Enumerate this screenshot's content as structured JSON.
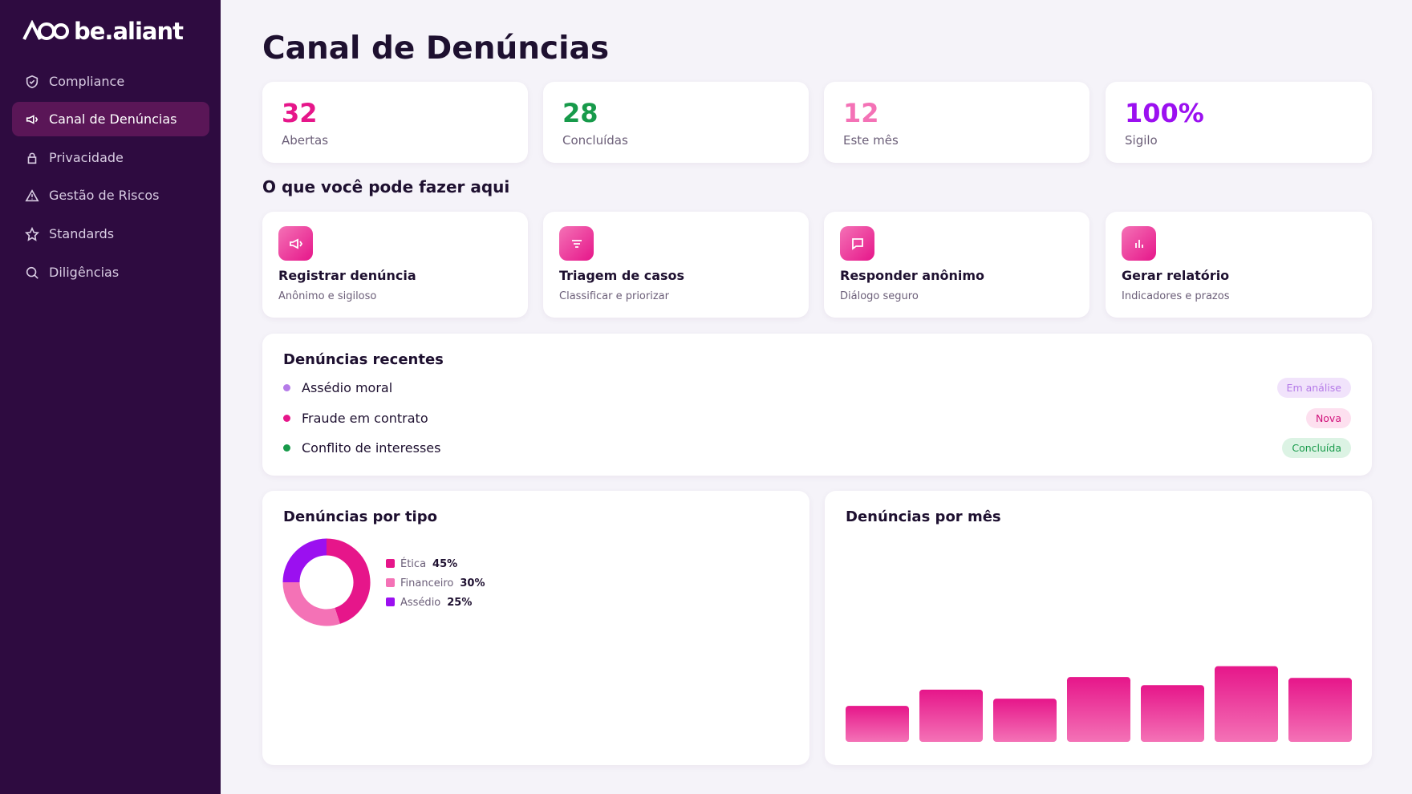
{
  "sidebar": {
    "logo": "be.aliant",
    "nav": [
      "Compliance",
      "Canal de Denúncias",
      "Privacidade",
      "Gestão de Riscos",
      "Standards",
      "Diligências"
    ]
  },
  "header": {
    "title": "Canal de Denúncias"
  },
  "stats": [
    {
      "value": "32",
      "label": "Abertas"
    },
    {
      "value": "28",
      "label": "Concluídas"
    },
    {
      "value": "12",
      "label": "Este mês"
    },
    {
      "value": "100%",
      "label": "Sigilo"
    }
  ],
  "actions_title": "O que você pode fazer aqui",
  "actions": [
    {
      "title": "Registrar denúncia",
      "subtitle": "Anônimo e sigiloso"
    },
    {
      "title": "Triagem de casos",
      "subtitle": "Classificar e priorizar"
    },
    {
      "title": "Responder anônimo",
      "subtitle": "Diálogo seguro"
    },
    {
      "title": "Gerar relatório",
      "subtitle": "Indicadores e prazos"
    }
  ],
  "recent": {
    "title": "Denúncias recentes",
    "items": [
      {
        "name": "Assédio moral",
        "status": "Em análise"
      },
      {
        "name": "Fraude em contrato",
        "status": "Nova"
      },
      {
        "name": "Conflito de interesses",
        "status": "Concluída"
      }
    ]
  },
  "chart_data": [
    {
      "type": "pie",
      "title": "Denúncias por tipo",
      "categories": [
        "Ética",
        "Financeiro",
        "Assédio"
      ],
      "values": [
        45,
        30,
        25
      ],
      "value_labels": [
        "45%",
        "30%",
        "25%"
      ],
      "colors": [
        "#e6168a",
        "#f472b6",
        "#9b10f0"
      ],
      "donut": true
    },
    {
      "type": "bar",
      "title": "Denúncias por mês",
      "values": [
        40,
        58,
        48,
        72,
        63,
        84,
        71
      ],
      "color": "#e91e8c"
    }
  ]
}
